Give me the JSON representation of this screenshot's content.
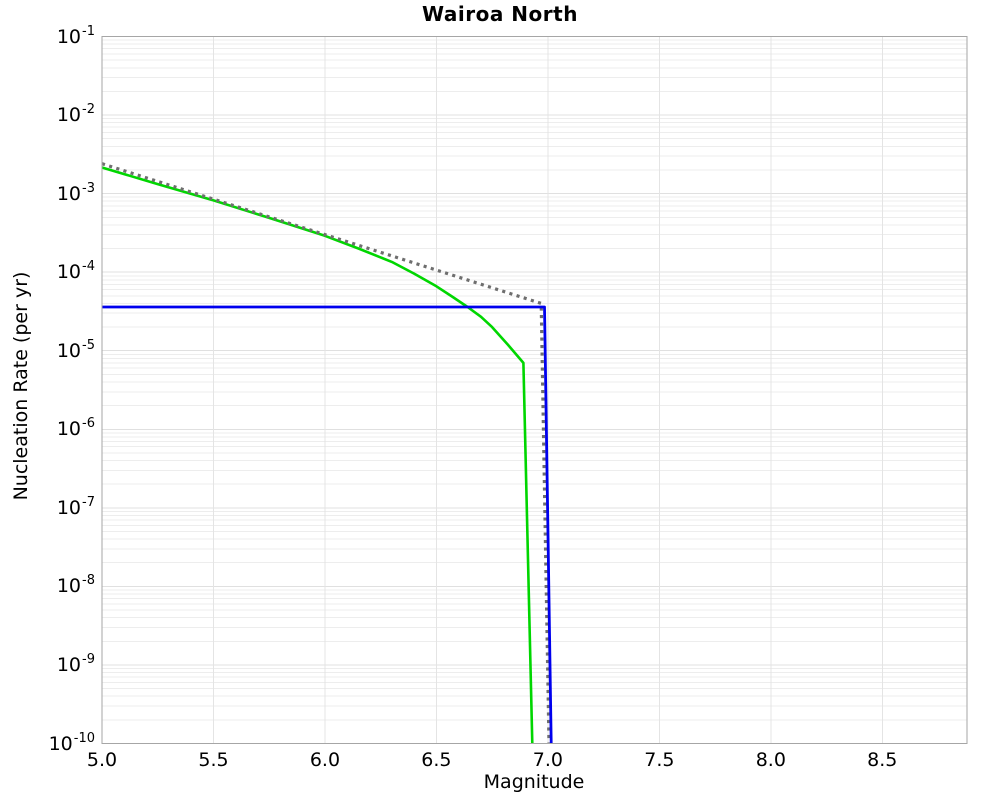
{
  "chart_data": {
    "type": "line",
    "title": "Wairoa North",
    "xlabel": "Magnitude",
    "ylabel": "Nucleation Rate (per yr)",
    "x_range": [
      5.0,
      8.88
    ],
    "y_log_range": [
      -10,
      -1
    ],
    "x_ticks": [
      5.0,
      5.5,
      6.0,
      6.5,
      7.0,
      7.5,
      8.0,
      8.5
    ],
    "y_tick_exponents": [
      -1,
      -2,
      -3,
      -4,
      -5,
      -6,
      -7,
      -8,
      -9,
      -10
    ],
    "grid": {
      "minor_mantissas": [
        2,
        3,
        4,
        5,
        6,
        7,
        8,
        9
      ],
      "grid_on": true
    },
    "legend": "none",
    "series": [
      {
        "name": "solid-green-line",
        "color": "#00d600",
        "style": "solid",
        "width": 2.6,
        "points": [
          [
            5.0,
            0.00215
          ],
          [
            5.25,
            0.00132
          ],
          [
            5.5,
            0.00082
          ],
          [
            5.75,
            0.00049
          ],
          [
            6.0,
            0.00029
          ],
          [
            6.15,
            0.0002
          ],
          [
            6.3,
            0.000135
          ],
          [
            6.4,
            9.6e-05
          ],
          [
            6.5,
            6.6e-05
          ],
          [
            6.57,
            4.9e-05
          ],
          [
            6.64,
            3.6e-05
          ],
          [
            6.7,
            2.7e-05
          ],
          [
            6.75,
            2e-05
          ],
          [
            6.82,
            1.2e-05
          ],
          [
            6.89,
            7e-06
          ],
          [
            6.93,
            1e-10
          ]
        ]
      },
      {
        "name": "dotted-gray-line",
        "color": "#6e6e6e",
        "style": "dotted",
        "width": 3.2,
        "points": [
          [
            5.0,
            0.0024
          ],
          [
            6.97,
            4e-05
          ],
          [
            7.005,
            1e-10
          ]
        ]
      },
      {
        "name": "solid-blue-line",
        "color": "#0000ee",
        "style": "solid",
        "width": 2.8,
        "points": [
          [
            5.0,
            3.6e-05
          ],
          [
            6.985,
            3.6e-05
          ],
          [
            7.015,
            1e-10
          ]
        ]
      }
    ]
  }
}
